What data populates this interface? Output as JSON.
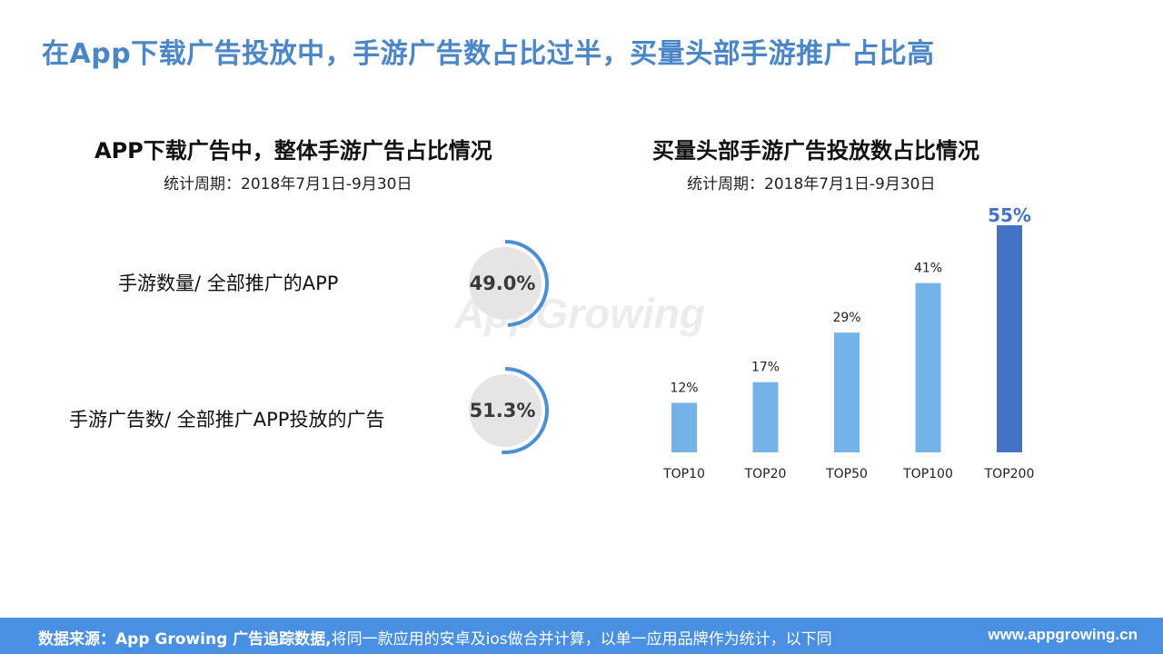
{
  "header": {
    "title": "在App下载广告投放中，手游广告数占比过半，买量头部手游推广占比高"
  },
  "left_panel": {
    "title": "APP下载广告中，整体手游广告占比情况",
    "period": "统计周期：2018年7月1日-9月30日",
    "metrics": [
      {
        "label": "手游数量/ 全部推广的APP",
        "value_text": "49.0%",
        "value": 49.0
      },
      {
        "label": "手游广告数/ 全部推广APP投放的广告",
        "value_text": "51.3%",
        "value": 51.3
      }
    ]
  },
  "right_panel": {
    "title": "买量头部手游广告投放数占比情况",
    "period": "统计周期：2018年7月1日-9月30日"
  },
  "watermark": "AppGrowing",
  "chart_data": [
    {
      "type": "pie",
      "slices": [
        {
          "value": 49.0
        },
        {
          "value": 51.0
        }
      ],
      "data_labels": [
        "49.0%"
      ]
    },
    {
      "type": "pie",
      "slices": [
        {
          "value": 51.3
        },
        {
          "value": 48.7
        }
      ],
      "data_labels": [
        "51.3%"
      ]
    },
    {
      "type": "bar",
      "title": "买量头部手游广告投放数占比情况",
      "categories": [
        "TOP10",
        "TOP20",
        "TOP50",
        "TOP100",
        "TOP200"
      ],
      "values": [
        12,
        17,
        29,
        41,
        55
      ],
      "data_labels": [
        "12%",
        "17%",
        "29%",
        "41%",
        "55%"
      ],
      "ylim": [
        0,
        55
      ],
      "grid": false,
      "colors": [
        "#74b3e8",
        "#74b3e8",
        "#74b3e8",
        "#74b3e8",
        "#4472c4"
      ],
      "highlight_label_color": "#4472c4"
    }
  ],
  "colors": {
    "accent": "#4a86c8",
    "ring_bg": "#e6e4e5",
    "ring_arc": "#4a8fd6",
    "bar": "#74b3e8",
    "bar_highlight": "#4472c4",
    "footer": "#4a90e2"
  },
  "footer": {
    "source_label": "数据来源：",
    "source_name": "App Growing 广告追踪数据,",
    "source_note": "将同一款应用的安卓及ios做合并计算，以单一应用品牌作为统计，以下同",
    "url": "www.appgrowing.cn"
  }
}
